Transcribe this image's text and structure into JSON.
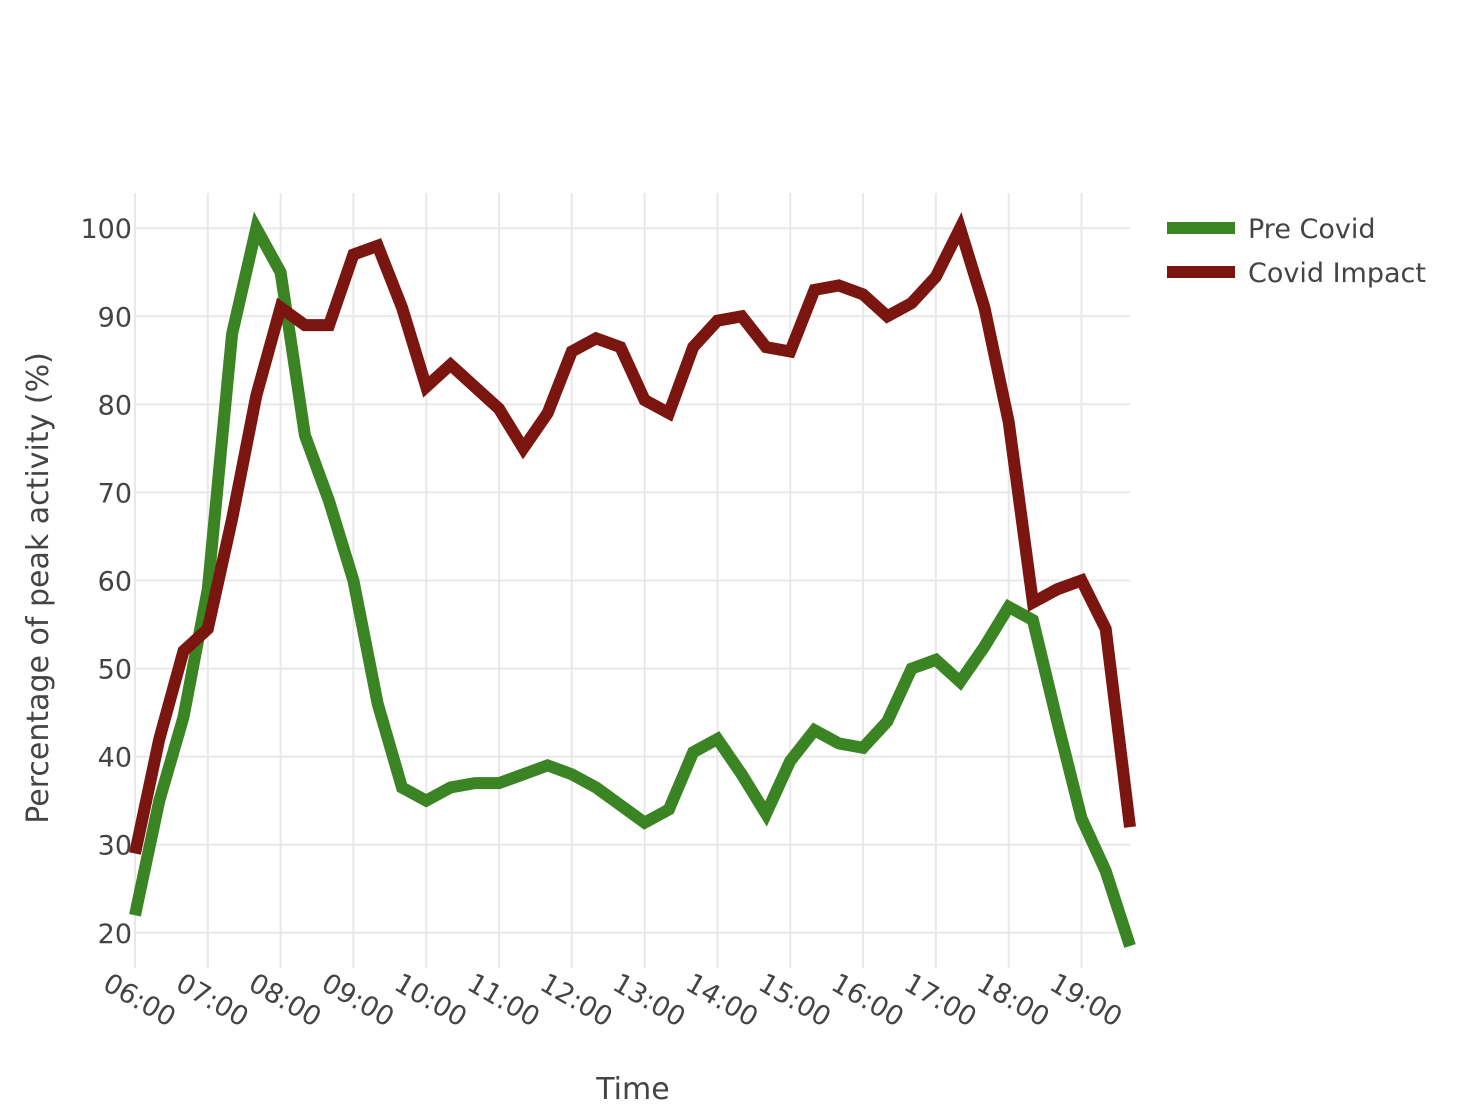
{
  "chart_data": {
    "type": "line",
    "title": "",
    "xlabel": "Time",
    "ylabel": "Percentage of peak activity (%)",
    "x_tick_labels": [
      "06:00",
      "07:00",
      "08:00",
      "09:00",
      "10:00",
      "11:00",
      "12:00",
      "13:00",
      "14:00",
      "15:00",
      "16:00",
      "17:00",
      "18:00",
      "19:00"
    ],
    "xlim": [
      "06:00",
      "19:40"
    ],
    "ylim": [
      16,
      104
    ],
    "yticks": [
      20,
      30,
      40,
      50,
      60,
      70,
      80,
      90,
      100
    ],
    "grid": true,
    "legend_position": "top-right",
    "series": [
      {
        "name": "Pre Covid",
        "color": "#3b8424",
        "x": [
          "06:00",
          "06:20",
          "06:40",
          "07:00",
          "07:20",
          "07:40",
          "08:00",
          "08:20",
          "08:40",
          "09:00",
          "09:20",
          "09:40",
          "10:00",
          "10:20",
          "10:40",
          "11:00",
          "11:20",
          "11:40",
          "12:00",
          "12:20",
          "12:40",
          "13:00",
          "13:20",
          "13:40",
          "14:00",
          "14:20",
          "14:40",
          "15:00",
          "15:20",
          "15:40",
          "16:00",
          "16:20",
          "16:40",
          "17:00",
          "17:20",
          "17:40",
          "18:00",
          "18:20",
          "18:40",
          "19:00",
          "19:20",
          "19:40"
        ],
        "values": [
          22,
          35,
          44.5,
          59,
          88,
          100,
          95,
          76.5,
          69,
          60,
          46,
          36.5,
          35,
          36.5,
          37,
          37,
          38,
          39,
          38,
          36.5,
          34.5,
          32.5,
          34,
          40.5,
          42,
          38,
          33.5,
          39.5,
          43,
          41.5,
          41,
          44,
          50,
          51,
          48.5,
          52.5,
          57,
          55.5,
          44,
          33,
          27,
          18.5
        ]
      },
      {
        "name": "Covid Impact",
        "color": "#7b1510",
        "x": [
          "06:00",
          "06:20",
          "06:40",
          "07:00",
          "07:20",
          "07:40",
          "08:00",
          "08:20",
          "08:40",
          "09:00",
          "09:20",
          "09:40",
          "10:00",
          "10:20",
          "10:40",
          "11:00",
          "11:20",
          "11:40",
          "12:00",
          "12:20",
          "12:40",
          "13:00",
          "13:20",
          "13:40",
          "14:00",
          "14:20",
          "14:40",
          "15:00",
          "15:20",
          "15:40",
          "16:00",
          "16:20",
          "16:40",
          "17:00",
          "17:20",
          "17:40",
          "18:00",
          "18:20",
          "18:40",
          "19:00",
          "19:20",
          "19:40"
        ],
        "values": [
          29,
          42,
          52,
          54.5,
          67,
          81,
          91,
          89,
          89,
          97,
          98,
          91,
          82,
          84.5,
          82,
          79.5,
          75,
          79,
          86,
          87.5,
          86.5,
          80.5,
          79,
          86.5,
          89.5,
          90,
          86.5,
          86,
          93,
          93.5,
          92.5,
          90,
          91.5,
          94.5,
          100,
          91,
          78,
          57.5,
          59,
          60,
          54.5,
          32
        ]
      }
    ]
  }
}
